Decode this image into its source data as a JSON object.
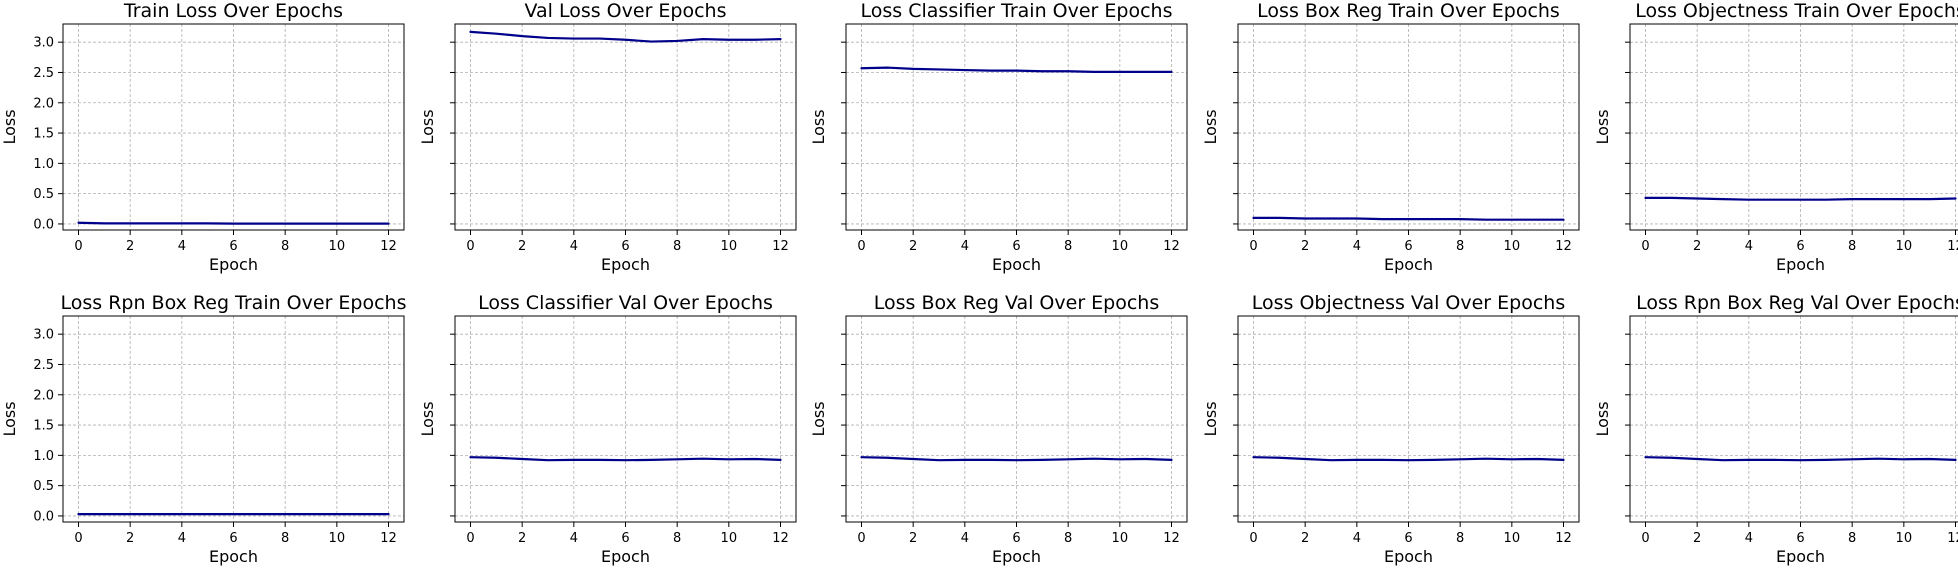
{
  "figure": {
    "x_ticks": [
      "0",
      "2",
      "4",
      "6",
      "8",
      "10",
      "12"
    ],
    "y_ticks": [
      "0.0",
      "0.5",
      "1.0",
      "1.5",
      "2.0",
      "2.5",
      "3.0"
    ],
    "shared_ylim": [
      -0.1,
      3.3
    ],
    "line_color": "#00008b",
    "grid": true
  },
  "chart_data": [
    {
      "type": "line",
      "title": "Train Loss Over Epochs",
      "xlabel": "Epoch",
      "ylabel": "Loss",
      "x": [
        0,
        1,
        2,
        3,
        4,
        5,
        6,
        7,
        8,
        9,
        10,
        11,
        12
      ],
      "series": [
        {
          "values": [
            0.02,
            0.01,
            0.01,
            0.01,
            0.01,
            0.01,
            0.005,
            0.005,
            0.005,
            0.005,
            0.005,
            0.005,
            0.005
          ]
        }
      ],
      "xlim": [
        -0.6,
        12.6
      ],
      "ylim": [
        -0.1,
        3.3
      ]
    },
    {
      "type": "line",
      "title": "Val Loss Over Epochs",
      "xlabel": "Epoch",
      "ylabel": "Loss",
      "x": [
        0,
        1,
        2,
        3,
        4,
        5,
        6,
        7,
        8,
        9,
        10,
        11,
        12
      ],
      "series": [
        {
          "values": [
            3.17,
            3.14,
            3.1,
            3.07,
            3.06,
            3.06,
            3.04,
            3.01,
            3.02,
            3.05,
            3.04,
            3.04,
            3.05
          ]
        }
      ],
      "xlim": [
        -0.6,
        12.6
      ],
      "ylim": [
        -0.1,
        3.3
      ]
    },
    {
      "type": "line",
      "title": "Loss Classifier Train Over Epochs",
      "xlabel": "Epoch",
      "ylabel": "Loss",
      "x": [
        0,
        1,
        2,
        3,
        4,
        5,
        6,
        7,
        8,
        9,
        10,
        11,
        12
      ],
      "series": [
        {
          "values": [
            2.57,
            2.58,
            2.56,
            2.55,
            2.54,
            2.53,
            2.53,
            2.52,
            2.52,
            2.51,
            2.51,
            2.51,
            2.51
          ]
        }
      ],
      "xlim": [
        -0.6,
        12.6
      ],
      "ylim": [
        -0.1,
        3.3
      ]
    },
    {
      "type": "line",
      "title": "Loss Box Reg Train Over Epochs",
      "xlabel": "Epoch",
      "ylabel": "Loss",
      "x": [
        0,
        1,
        2,
        3,
        4,
        5,
        6,
        7,
        8,
        9,
        10,
        11,
        12
      ],
      "series": [
        {
          "values": [
            0.1,
            0.1,
            0.09,
            0.09,
            0.09,
            0.08,
            0.08,
            0.08,
            0.08,
            0.07,
            0.07,
            0.07,
            0.07
          ]
        }
      ],
      "xlim": [
        -0.6,
        12.6
      ],
      "ylim": [
        -0.1,
        3.3
      ]
    },
    {
      "type": "line",
      "title": "Loss Objectness Train Over Epochs",
      "xlabel": "Epoch",
      "ylabel": "Loss",
      "x": [
        0,
        1,
        2,
        3,
        4,
        5,
        6,
        7,
        8,
        9,
        10,
        11,
        12
      ],
      "series": [
        {
          "values": [
            0.43,
            0.43,
            0.42,
            0.41,
            0.4,
            0.4,
            0.4,
            0.4,
            0.41,
            0.41,
            0.41,
            0.41,
            0.42
          ]
        }
      ],
      "xlim": [
        -0.6,
        12.6
      ],
      "ylim": [
        -0.1,
        3.3
      ]
    },
    {
      "type": "line",
      "title": "Loss Rpn Box Reg Train Over Epochs",
      "xlabel": "Epoch",
      "ylabel": "Loss",
      "x": [
        0,
        1,
        2,
        3,
        4,
        5,
        6,
        7,
        8,
        9,
        10,
        11,
        12
      ],
      "series": [
        {
          "values": [
            0.03,
            0.03,
            0.03,
            0.03,
            0.03,
            0.03,
            0.03,
            0.03,
            0.03,
            0.03,
            0.03,
            0.03,
            0.03
          ]
        }
      ],
      "xlim": [
        -0.6,
        12.6
      ],
      "ylim": [
        -0.1,
        3.3
      ]
    },
    {
      "type": "line",
      "title": "Loss Classifier Val Over Epochs",
      "xlabel": "Epoch",
      "ylabel": "Loss",
      "x": [
        0,
        1,
        2,
        3,
        4,
        5,
        6,
        7,
        8,
        9,
        10,
        11,
        12
      ],
      "series": [
        {
          "values": [
            0.97,
            0.96,
            0.94,
            0.92,
            0.925,
            0.925,
            0.92,
            0.925,
            0.935,
            0.945,
            0.935,
            0.94,
            0.925
          ]
        }
      ],
      "xlim": [
        -0.6,
        12.6
      ],
      "ylim": [
        -0.1,
        3.3
      ]
    },
    {
      "type": "line",
      "title": "Loss Box Reg Val Over Epochs",
      "xlabel": "Epoch",
      "ylabel": "Loss",
      "x": [
        0,
        1,
        2,
        3,
        4,
        5,
        6,
        7,
        8,
        9,
        10,
        11,
        12
      ],
      "series": [
        {
          "values": [
            0.97,
            0.96,
            0.94,
            0.92,
            0.925,
            0.925,
            0.92,
            0.925,
            0.935,
            0.945,
            0.935,
            0.94,
            0.925
          ]
        }
      ],
      "xlim": [
        -0.6,
        12.6
      ],
      "ylim": [
        -0.1,
        3.3
      ]
    },
    {
      "type": "line",
      "title": "Loss Objectness Val Over Epochs",
      "xlabel": "Epoch",
      "ylabel": "Loss",
      "x": [
        0,
        1,
        2,
        3,
        4,
        5,
        6,
        7,
        8,
        9,
        10,
        11,
        12
      ],
      "series": [
        {
          "values": [
            0.97,
            0.96,
            0.94,
            0.92,
            0.925,
            0.925,
            0.92,
            0.925,
            0.935,
            0.945,
            0.935,
            0.94,
            0.925
          ]
        }
      ],
      "xlim": [
        -0.6,
        12.6
      ],
      "ylim": [
        -0.1,
        3.3
      ]
    },
    {
      "type": "line",
      "title": "Loss Rpn Box Reg Val Over Epochs",
      "xlabel": "Epoch",
      "ylabel": "Loss",
      "x": [
        0,
        1,
        2,
        3,
        4,
        5,
        6,
        7,
        8,
        9,
        10,
        11,
        12
      ],
      "series": [
        {
          "values": [
            0.97,
            0.96,
            0.94,
            0.92,
            0.925,
            0.925,
            0.92,
            0.925,
            0.935,
            0.945,
            0.935,
            0.94,
            0.925
          ]
        }
      ],
      "xlim": [
        -0.6,
        12.6
      ],
      "ylim": [
        -0.1,
        3.3
      ]
    }
  ]
}
